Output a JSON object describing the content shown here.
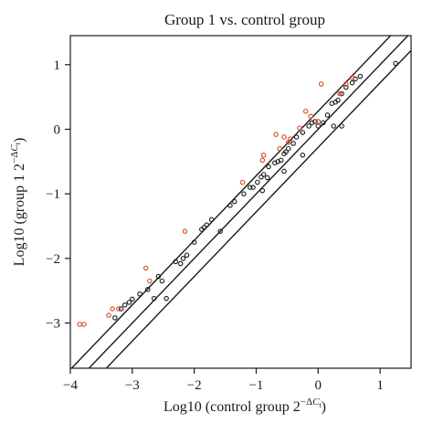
{
  "chart_data": {
    "type": "scatter",
    "title": "Group 1 vs. control group",
    "xlabel": {
      "main": "Log10 (control group 2",
      "sup_prefix": "−Δ",
      "sup_C": "C",
      "sup_sub": "t",
      "close": ")"
    },
    "ylabel": {
      "main": "Log10 (group 1 2",
      "sup_prefix": "−Δ",
      "sup_C": "C",
      "sup_sub": "t",
      "close": ")"
    },
    "xlim": [
      -4,
      1.5
    ],
    "ylim": [
      -3.7,
      1.45
    ],
    "xticks": [
      "-4",
      "-3",
      "-2",
      "-1",
      "0",
      "1"
    ],
    "yticks": [
      "-3",
      "-2",
      "-1",
      "0",
      "1"
    ],
    "reference_lines": [
      {
        "name": "fold-change upper",
        "intercept": 0.28
      },
      {
        "name": "identity",
        "intercept": 0
      },
      {
        "name": "fold-change lower",
        "intercept": -0.28
      }
    ],
    "series": [
      {
        "color": "#1a1a1a",
        "points": [
          [
            -3.28,
            -2.92
          ],
          [
            -3.18,
            -2.78
          ],
          [
            -3.12,
            -2.72
          ],
          [
            -3.05,
            -2.68
          ],
          [
            -3.0,
            -2.63
          ],
          [
            -2.88,
            -2.55
          ],
          [
            -2.75,
            -2.48
          ],
          [
            -2.58,
            -2.28
          ],
          [
            -2.52,
            -2.35
          ],
          [
            -2.45,
            -2.62
          ],
          [
            -2.3,
            -2.05
          ],
          [
            -2.22,
            -2.08
          ],
          [
            -2.18,
            -2.0
          ],
          [
            -2.12,
            -1.95
          ],
          [
            -2.0,
            -1.75
          ],
          [
            -1.88,
            -1.55
          ],
          [
            -1.84,
            -1.52
          ],
          [
            -1.8,
            -1.48
          ],
          [
            -1.72,
            -1.4
          ],
          [
            -1.58,
            -1.58
          ],
          [
            -1.42,
            -1.18
          ],
          [
            -1.35,
            -1.12
          ],
          [
            -1.2,
            -1.0
          ],
          [
            -1.1,
            -0.9
          ],
          [
            -0.98,
            -0.82
          ],
          [
            -0.92,
            -0.74
          ],
          [
            -0.9,
            -0.95
          ],
          [
            -0.88,
            -0.7
          ],
          [
            -0.82,
            -0.75
          ],
          [
            -0.8,
            -0.58
          ],
          [
            -0.7,
            -0.52
          ],
          [
            -0.65,
            -0.5
          ],
          [
            -0.6,
            -0.48
          ],
          [
            -0.55,
            -0.38
          ],
          [
            -0.52,
            -0.35
          ],
          [
            -0.48,
            -0.3
          ],
          [
            -0.4,
            -0.22
          ],
          [
            -0.35,
            -0.12
          ],
          [
            -0.25,
            -0.05
          ],
          [
            -0.15,
            0.05
          ],
          [
            -0.1,
            0.1
          ],
          [
            -0.05,
            0.12
          ],
          [
            0.0,
            0.05
          ],
          [
            0.08,
            0.1
          ],
          [
            0.15,
            0.22
          ],
          [
            0.22,
            0.4
          ],
          [
            0.28,
            0.42
          ],
          [
            0.32,
            0.45
          ],
          [
            0.38,
            0.55
          ],
          [
            0.45,
            0.65
          ],
          [
            0.55,
            0.72
          ],
          [
            0.6,
            0.78
          ],
          [
            0.68,
            0.82
          ],
          [
            0.25,
            0.05
          ],
          [
            0.38,
            0.05
          ],
          [
            1.25,
            1.02
          ],
          [
            -0.25,
            -0.4
          ],
          [
            -0.55,
            -0.65
          ],
          [
            -1.05,
            -0.9
          ],
          [
            -2.65,
            -2.62
          ]
        ]
      },
      {
        "color": "#d9481c",
        "points": [
          [
            -3.85,
            -3.02
          ],
          [
            -3.78,
            -3.02
          ],
          [
            -3.38,
            -2.88
          ],
          [
            -3.32,
            -2.78
          ],
          [
            -3.22,
            -2.78
          ],
          [
            -2.78,
            -2.15
          ],
          [
            -2.72,
            -2.35
          ],
          [
            -2.15,
            -1.58
          ],
          [
            -1.22,
            -0.82
          ],
          [
            -0.9,
            -0.48
          ],
          [
            -0.88,
            -0.4
          ],
          [
            -0.68,
            -0.08
          ],
          [
            -0.62,
            -0.3
          ],
          [
            -0.55,
            -0.12
          ],
          [
            -0.48,
            -0.2
          ],
          [
            -0.45,
            -0.15
          ],
          [
            -0.3,
            0.02
          ],
          [
            -0.2,
            0.28
          ],
          [
            0.0,
            0.12
          ],
          [
            0.05,
            0.7
          ],
          [
            0.35,
            0.55
          ],
          [
            0.45,
            0.7
          ],
          [
            0.55,
            0.8
          ],
          [
            -0.12,
            0.2
          ]
        ]
      }
    ]
  }
}
